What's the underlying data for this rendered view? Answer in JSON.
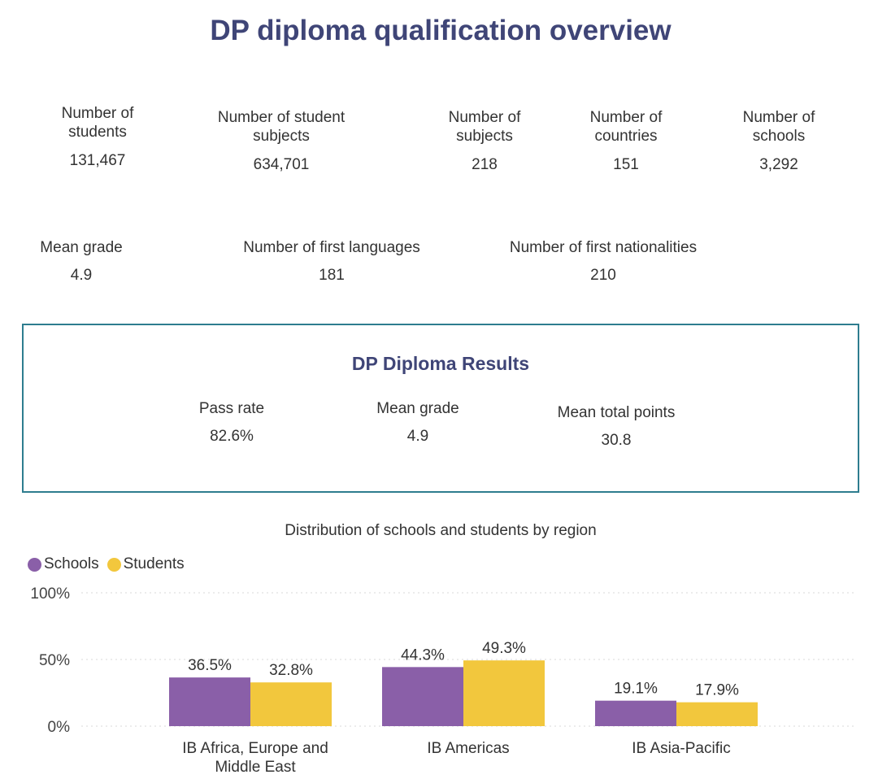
{
  "title": "DP diploma qualification overview",
  "stats_row1": [
    {
      "label": "Number of\nstudents",
      "value": "131,467"
    },
    {
      "label": "Number of student\nsubjects",
      "value": "634,701"
    },
    {
      "label": "Number of\nsubjects",
      "value": "218"
    },
    {
      "label": "Number of\ncountries",
      "value": "151"
    },
    {
      "label": "Number of\nschools",
      "value": "3,292"
    }
  ],
  "stats_row2": [
    {
      "label": "Mean grade",
      "value": "4.9"
    },
    {
      "label": "Number of first languages",
      "value": "181"
    },
    {
      "label": "Number of first nationalities",
      "value": "210"
    }
  ],
  "results": {
    "title": "DP Diploma Results",
    "items": [
      {
        "label": "Pass rate",
        "value": "82.6%"
      },
      {
        "label": "Mean grade",
        "value": "4.9"
      },
      {
        "label": "Mean total points",
        "value": "30.8"
      }
    ]
  },
  "colors": {
    "title": "#3f4577",
    "border": "#2e7d8f",
    "schools": "#8a5fa8",
    "students": "#f2c73d"
  },
  "chart_data": {
    "type": "bar",
    "title": "Distribution of schools and students by region",
    "categories": [
      "IB Africa, Europe and Middle East",
      "IB Americas",
      "IB Asia-Pacific"
    ],
    "category_lines": [
      [
        "IB Africa, Europe and",
        "Middle East"
      ],
      [
        "IB Americas"
      ],
      [
        "IB Asia-Pacific"
      ]
    ],
    "series": [
      {
        "name": "Schools",
        "values": [
          36.5,
          44.3,
          19.1
        ],
        "labels": [
          "36.5%",
          "44.3%",
          "19.1%"
        ],
        "color": "#8a5fa8"
      },
      {
        "name": "Students",
        "values": [
          32.8,
          49.3,
          17.9
        ],
        "labels": [
          "32.8%",
          "49.3%",
          "17.9%"
        ],
        "color": "#f2c73d"
      }
    ],
    "ylim": [
      0,
      100
    ],
    "yticks": [
      {
        "value": 0,
        "label": "0%"
      },
      {
        "value": 50,
        "label": "50%"
      },
      {
        "value": 100,
        "label": "100%"
      }
    ],
    "grid": true,
    "legend": "top-left"
  }
}
